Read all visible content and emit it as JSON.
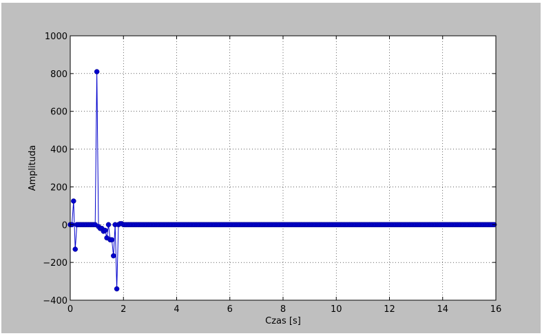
{
  "chart_data": {
    "type": "line",
    "title": "",
    "xlabel": "Czas [s]",
    "ylabel": "Amplituda",
    "xlim": [
      0,
      16
    ],
    "ylim": [
      -400,
      1000
    ],
    "xticks": [
      0,
      2,
      4,
      6,
      8,
      10,
      12,
      14,
      16
    ],
    "yticks": [
      -400,
      -200,
      0,
      200,
      400,
      600,
      800,
      1000
    ],
    "xtick_labels": [
      "0",
      "2",
      "4",
      "6",
      "8",
      "10",
      "12",
      "14",
      "16"
    ],
    "ytick_labels": [
      "−400",
      "−200",
      "0",
      "200",
      "400",
      "600",
      "800",
      "1000"
    ],
    "grid": true,
    "marker": "circle",
    "colors": {
      "series": "#0000cc",
      "figure_bg": "#bfbfbf",
      "axes_bg": "#ffffff"
    },
    "series": [
      {
        "x": [
          0.0,
          0.0625,
          0.125,
          0.1875,
          0.25,
          0.3125,
          0.375,
          0.4375,
          0.5,
          0.5625,
          0.625,
          0.6875,
          0.75,
          0.8125,
          0.875,
          0.9375,
          1.0,
          1.0625,
          1.125,
          1.1875,
          1.25,
          1.3125,
          1.375,
          1.4375,
          1.5,
          1.5625,
          1.625,
          1.6875,
          1.75,
          1.8125,
          1.875,
          1.9375,
          2.0,
          2.0625,
          2.125,
          2.1875,
          2.25,
          2.3125,
          2.375,
          2.4375,
          2.5,
          2.5625,
          2.625,
          2.6875,
          2.75,
          2.8125,
          2.875,
          2.9375,
          3.0,
          3.0625,
          3.125,
          3.1875,
          3.25,
          3.3125,
          3.375,
          3.4375,
          3.5,
          3.5625,
          3.625,
          3.6875,
          3.75,
          3.8125,
          3.875,
          3.9375,
          4.0,
          4.0625,
          4.125,
          4.1875,
          4.25,
          4.3125,
          4.375,
          4.4375,
          4.5,
          4.5625,
          4.625,
          4.6875,
          4.75,
          4.8125,
          4.875,
          4.9375,
          5.0,
          5.0625,
          5.125,
          5.1875,
          5.25,
          5.3125,
          5.375,
          5.4375,
          5.5,
          5.5625,
          5.625,
          5.6875,
          5.75,
          5.8125,
          5.875,
          5.9375,
          6.0,
          6.0625,
          6.125,
          6.1875,
          6.25,
          6.3125,
          6.375,
          6.4375,
          6.5,
          6.5625,
          6.625,
          6.6875,
          6.75,
          6.8125,
          6.875,
          6.9375,
          7.0,
          7.0625,
          7.125,
          7.1875,
          7.25,
          7.3125,
          7.375,
          7.4375,
          7.5,
          7.5625,
          7.625,
          7.6875,
          7.75,
          7.8125,
          7.875,
          7.9375,
          8.0,
          8.0625,
          8.125,
          8.1875,
          8.25,
          8.3125,
          8.375,
          8.4375,
          8.5,
          8.5625,
          8.625,
          8.6875,
          8.75,
          8.8125,
          8.875,
          8.9375,
          9.0,
          9.0625,
          9.125,
          9.1875,
          9.25,
          9.3125,
          9.375,
          9.4375,
          9.5,
          9.5625,
          9.625,
          9.6875,
          9.75,
          9.8125,
          9.875,
          9.9375,
          10.0,
          10.0625,
          10.125,
          10.1875,
          10.25,
          10.3125,
          10.375,
          10.4375,
          10.5,
          10.5625,
          10.625,
          10.6875,
          10.75,
          10.8125,
          10.875,
          10.9375,
          11.0,
          11.0625,
          11.125,
          11.1875,
          11.25,
          11.3125,
          11.375,
          11.4375,
          11.5,
          11.5625,
          11.625,
          11.6875,
          11.75,
          11.8125,
          11.875,
          11.9375,
          12.0,
          12.0625,
          12.125,
          12.1875,
          12.25,
          12.3125,
          12.375,
          12.4375,
          12.5,
          12.5625,
          12.625,
          12.6875,
          12.75,
          12.8125,
          12.875,
          12.9375,
          13.0,
          13.0625,
          13.125,
          13.1875,
          13.25,
          13.3125,
          13.375,
          13.4375,
          13.5,
          13.5625,
          13.625,
          13.6875,
          13.75,
          13.8125,
          13.875,
          13.9375,
          14.0,
          14.0625,
          14.125,
          14.1875,
          14.25,
          14.3125,
          14.375,
          14.4375,
          14.5,
          14.5625,
          14.625,
          14.6875,
          14.75,
          14.8125,
          14.875,
          14.9375,
          15.0,
          15.0625,
          15.125,
          15.1875,
          15.25,
          15.3125,
          15.375,
          15.4375,
          15.5,
          15.5625,
          15.625,
          15.6875,
          15.75,
          15.8125,
          15.875,
          15.9375
        ],
        "y": [
          0,
          0,
          125,
          -130,
          0,
          0,
          0,
          0,
          0,
          0,
          0,
          0,
          0,
          0,
          0,
          0,
          810,
          -10,
          -20,
          -20,
          -35,
          -30,
          -70,
          0,
          -80,
          -80,
          -165,
          0,
          -340,
          0,
          5,
          5,
          0,
          0,
          0,
          0,
          0,
          0,
          0,
          0,
          0,
          0,
          0,
          0,
          0,
          0,
          0,
          0,
          0,
          0,
          0,
          0,
          0,
          0,
          0,
          0,
          0,
          0,
          0,
          0,
          0,
          0,
          0,
          0,
          0,
          0,
          0,
          0,
          0,
          0,
          0,
          0,
          0,
          0,
          0,
          0,
          0,
          0,
          0,
          0,
          0,
          0,
          0,
          0,
          0,
          0,
          0,
          0,
          0,
          0,
          0,
          0,
          0,
          0,
          0,
          0,
          0,
          0,
          0,
          0,
          0,
          0,
          0,
          0,
          0,
          0,
          0,
          0,
          0,
          0,
          0,
          0,
          0,
          0,
          0,
          0,
          0,
          0,
          0,
          0,
          0,
          0,
          0,
          0,
          0,
          0,
          0,
          0,
          0,
          0,
          0,
          0,
          0,
          0,
          0,
          0,
          0,
          0,
          0,
          0,
          0,
          0,
          0,
          0,
          0,
          0,
          0,
          0,
          0,
          0,
          0,
          0,
          0,
          0,
          0,
          0,
          0,
          0,
          0,
          0,
          0,
          0,
          0,
          0,
          0,
          0,
          0,
          0,
          0,
          0,
          0,
          0,
          0,
          0,
          0,
          0,
          0,
          0,
          0,
          0,
          0,
          0,
          0,
          0,
          0,
          0,
          0,
          0,
          0,
          0,
          0,
          0,
          0,
          0,
          0,
          0,
          0,
          0,
          0,
          0,
          0,
          0,
          0,
          0,
          0,
          0,
          0,
          0,
          0,
          0,
          0,
          0,
          0,
          0,
          0,
          0,
          0,
          0,
          0,
          0,
          0,
          0,
          0,
          0,
          0,
          0,
          0,
          0,
          0,
          0,
          0,
          0,
          0,
          0,
          0,
          0,
          0,
          0,
          0,
          0,
          0,
          0,
          0,
          0,
          0,
          0,
          0,
          0,
          0,
          0,
          0,
          0,
          0,
          0,
          0,
          0
        ]
      }
    ]
  }
}
